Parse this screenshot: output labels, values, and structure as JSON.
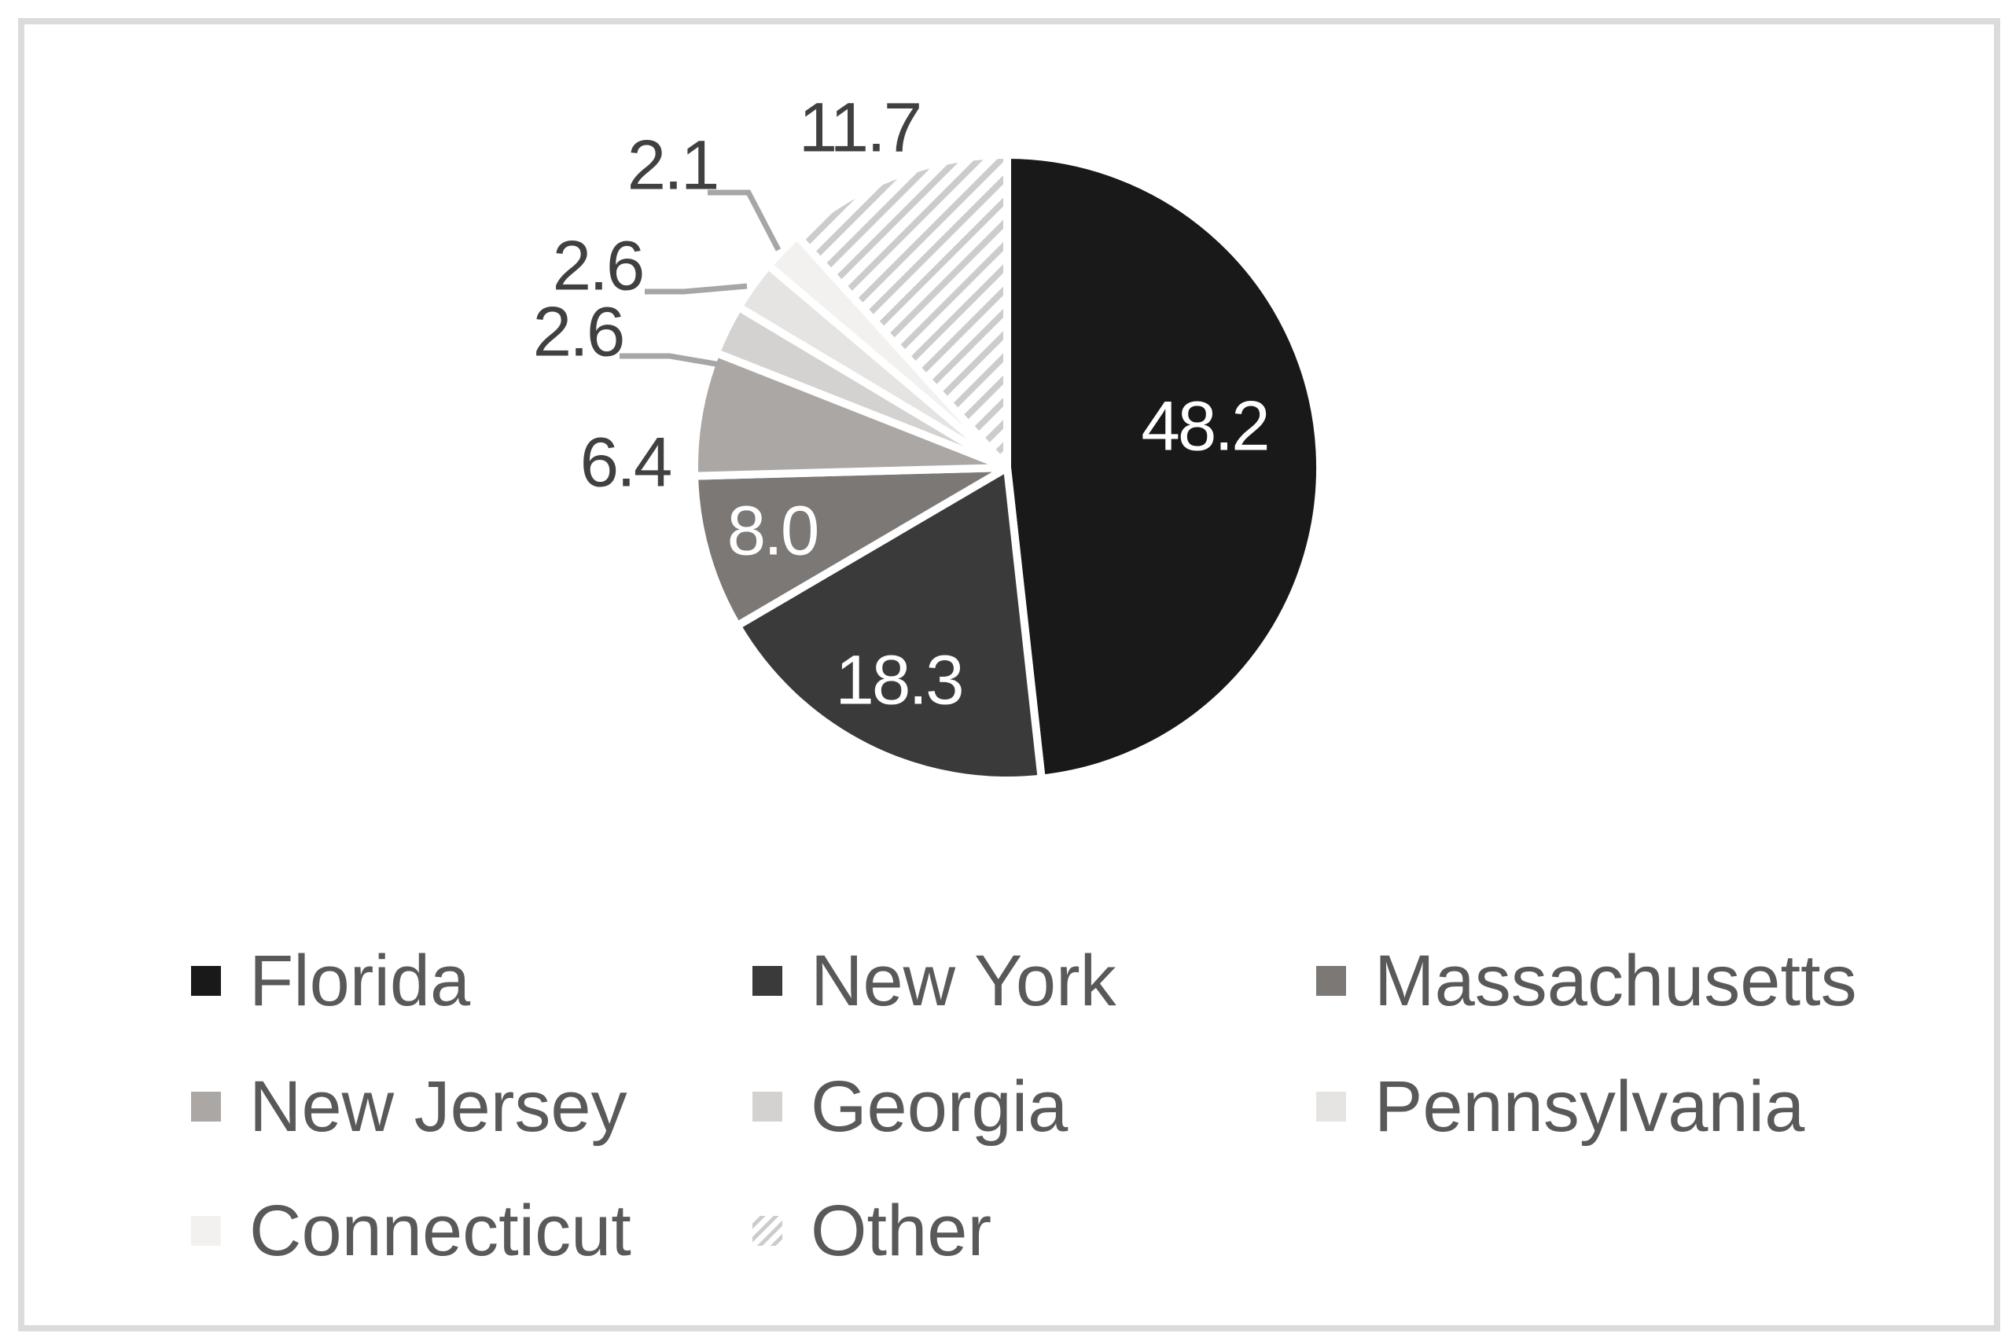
{
  "figure": {
    "background": "#ffffff",
    "frame_color": "#dbdbdb"
  },
  "chart_data": {
    "type": "pie",
    "title": "",
    "categories": [
      "Florida",
      "New York",
      "Massachusetts",
      "New Jersey",
      "Georgia",
      "Pennsylvania",
      "Connecticut",
      "Other"
    ],
    "values": [
      48.2,
      18.3,
      8.0,
      6.4,
      2.6,
      2.6,
      2.1,
      11.7
    ],
    "colors": [
      "#191919",
      "#3a3a3a",
      "#7b7876",
      "#aba7a4",
      "#d3d2d0",
      "#e5e4e2",
      "#f2f1ef",
      "hatch"
    ],
    "hatch_style": {
      "pattern": "diagonal-up-stripes",
      "stripe_color": "#cccccc",
      "background": "#ffffff"
    },
    "start_angle_deg": 0,
    "direction": "clockwise",
    "slice_separator_color": "#ffffff",
    "inside_label_color": "#ffffff",
    "outside_label_color": "#404040",
    "leader_line_color": "#a6a6a6",
    "legend_position": "bottom",
    "legend_text_color": "#595959",
    "label_decimals": 1
  }
}
